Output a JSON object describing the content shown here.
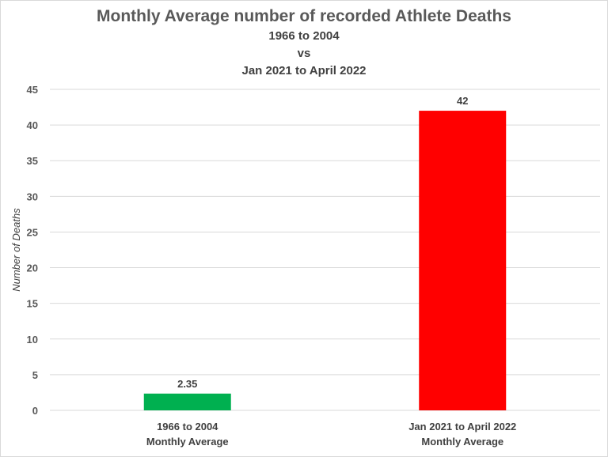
{
  "chart_data": {
    "type": "bar",
    "title": "Monthly Average number of recorded Athlete Deaths",
    "subtitle_lines": [
      "1966 to 2004",
      "vs",
      "Jan 2021 to April 2022"
    ],
    "ylabel": "Number of Deaths",
    "ylim": [
      0,
      45
    ],
    "yticks": [
      0,
      5,
      10,
      15,
      20,
      25,
      30,
      35,
      40,
      45
    ],
    "grid": true,
    "categories": [
      [
        "1966 to 2004",
        "Monthly Average"
      ],
      [
        "Jan 2021 to April 2022",
        "Monthly Average"
      ]
    ],
    "values": [
      2.35,
      42
    ],
    "value_labels": [
      "2.35",
      "42"
    ],
    "colors": [
      "#00b050",
      "#ff0000"
    ]
  }
}
